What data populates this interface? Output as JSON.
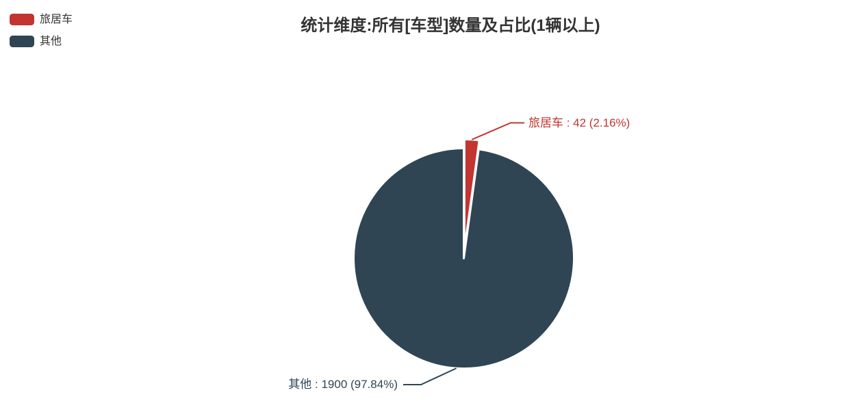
{
  "chart_data": {
    "type": "pie",
    "title": "统计维度:所有[车型]数量及占比(1辆以上)",
    "categories": [
      "旅居车",
      "其他"
    ],
    "values": [
      42,
      1900
    ],
    "percentages": [
      2.16,
      97.84
    ],
    "colors": [
      "#c23531",
      "#2f4554"
    ],
    "labels": [
      "旅居车 : 42 (2.16%)",
      "其他 : 1900 (97.84%)"
    ],
    "label_colors": [
      "#c23531",
      "#2f4554"
    ],
    "legend_position": "top-left",
    "legend_text_color": "#333333",
    "title_color": "#333333",
    "selected_slice": "旅居车",
    "slice_border_color": "#ffffff",
    "background": "#ffffff"
  }
}
